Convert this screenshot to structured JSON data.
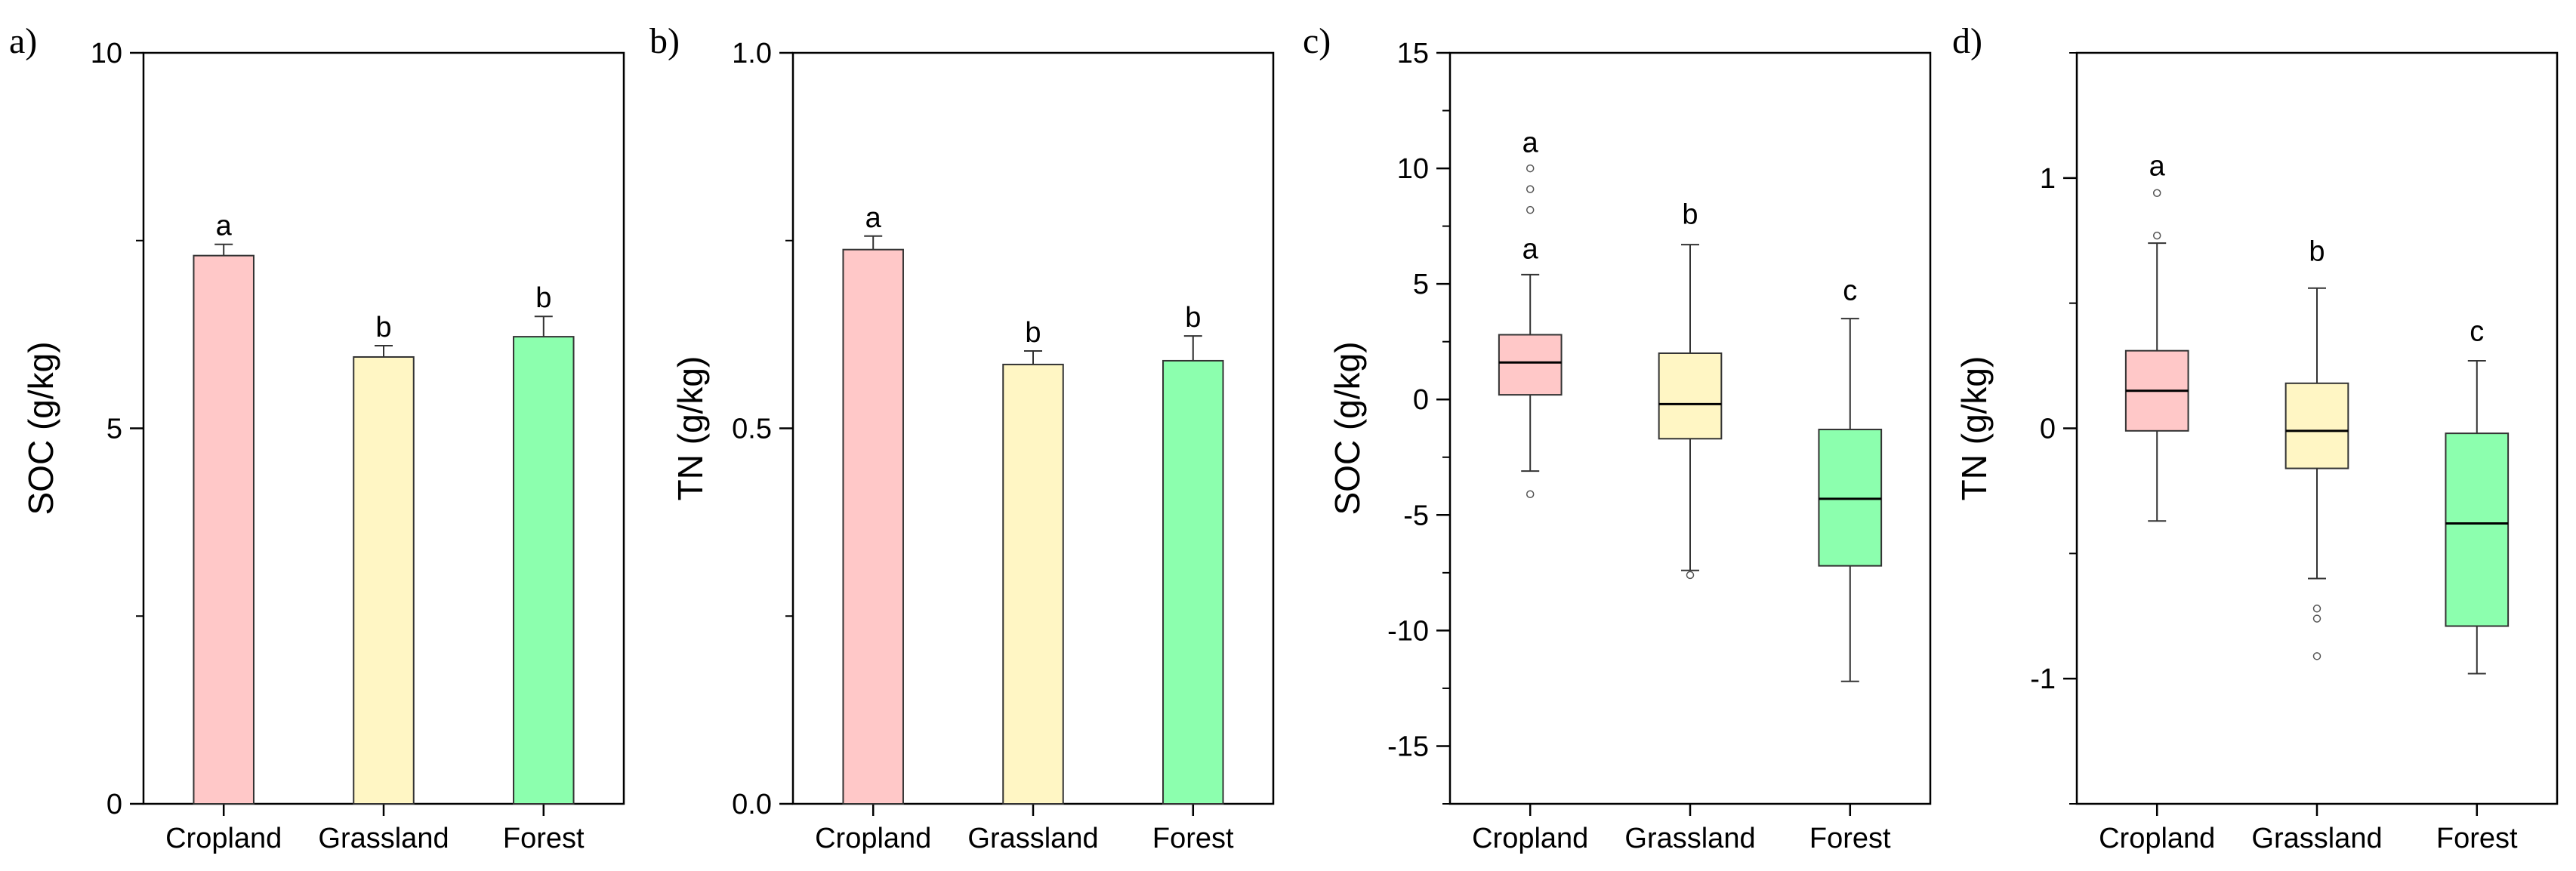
{
  "colors": {
    "Cropland": "#ffc8c8",
    "Grassland": "#fff6c4",
    "Forest": "#8cffae",
    "stroke": "#333333"
  },
  "chart_data": [
    {
      "type": "bar",
      "panel": "a)",
      "title": "",
      "xlabel": "",
      "ylabel": "SOC (g/kg)",
      "ylim": [
        0,
        10
      ],
      "yticks": [
        0,
        5,
        10
      ],
      "ytick_labels": [
        "0",
        "5",
        "10"
      ],
      "categories": [
        "Cropland",
        "Grassland",
        "Forest"
      ],
      "values": [
        7.3,
        5.95,
        6.22
      ],
      "errors": [
        0.15,
        0.15,
        0.27
      ],
      "labels": [
        "a",
        "b",
        "b"
      ]
    },
    {
      "type": "bar",
      "panel": "b)",
      "title": "",
      "xlabel": "",
      "ylabel": "TN (g/kg)",
      "ylim": [
        0,
        1
      ],
      "yticks": [
        0,
        0.5,
        1
      ],
      "ytick_labels": [
        "0.0",
        "0.5",
        "1.0"
      ],
      "categories": [
        "Cropland",
        "Grassland",
        "Forest"
      ],
      "values": [
        0.738,
        0.585,
        0.59
      ],
      "errors": [
        0.018,
        0.018,
        0.033
      ],
      "labels": [
        "a",
        "b",
        "b"
      ]
    },
    {
      "type": "box",
      "panel": "c)",
      "title": "",
      "xlabel": "",
      "ylabel": "SOC (g/kg)",
      "ylim": [
        -17.5,
        15
      ],
      "yticks": [
        -15,
        -10,
        -5,
        0,
        5,
        10,
        15
      ],
      "ytick_labels": [
        "-15",
        "-10",
        "-5",
        "0",
        "5",
        "10",
        "15"
      ],
      "categories": [
        "Cropland",
        "Grassland",
        "Forest"
      ],
      "boxes": [
        {
          "name": "Cropland",
          "whisker_low": -3.1,
          "q1": 0.2,
          "median": 1.6,
          "q3": 2.8,
          "whisker_high": 5.4,
          "outliers": [
            -4.1,
            8.2,
            9.1,
            10.0
          ]
        },
        {
          "name": "Grassland",
          "whisker_low": -7.4,
          "q1": -1.7,
          "median": -0.2,
          "q3": 2.0,
          "whisker_high": 6.7,
          "outliers": [
            -7.6
          ]
        },
        {
          "name": "Forest",
          "whisker_low": -12.2,
          "q1": -7.2,
          "median": -4.3,
          "q3": -1.3,
          "whisker_high": 3.5,
          "outliers": []
        }
      ],
      "labels": [
        "a",
        "b",
        "c"
      ],
      "label_values": [
        6.1,
        7.6,
        4.3
      ],
      "extra_labels": [
        {
          "category": "Cropland",
          "text": "a",
          "value": 10.7
        }
      ]
    },
    {
      "type": "box",
      "panel": "d)",
      "title": "",
      "xlabel": "",
      "ylabel": "TN (g/kg)",
      "ylim": [
        -1.5,
        1.5
      ],
      "yticks": [
        -1,
        0,
        1
      ],
      "ytick_labels": [
        "-1",
        "0",
        "1"
      ],
      "categories": [
        "Cropland",
        "Grassland",
        "Forest"
      ],
      "boxes": [
        {
          "name": "Cropland",
          "whisker_low": -0.37,
          "q1": -0.01,
          "median": 0.15,
          "q3": 0.31,
          "whisker_high": 0.74,
          "outliers": [
            0.77,
            0.94
          ]
        },
        {
          "name": "Grassland",
          "whisker_low": -0.6,
          "q1": -0.16,
          "median": -0.01,
          "q3": 0.18,
          "whisker_high": 0.56,
          "outliers": [
            -0.72,
            -0.76,
            -0.91
          ]
        },
        {
          "name": "Forest",
          "whisker_low": -0.98,
          "q1": -0.79,
          "median": -0.38,
          "q3": -0.02,
          "whisker_high": 0.27,
          "outliers": []
        }
      ],
      "labels": [
        "a",
        "b",
        "c"
      ],
      "label_values": [
        1.01,
        0.67,
        0.35
      ]
    }
  ]
}
